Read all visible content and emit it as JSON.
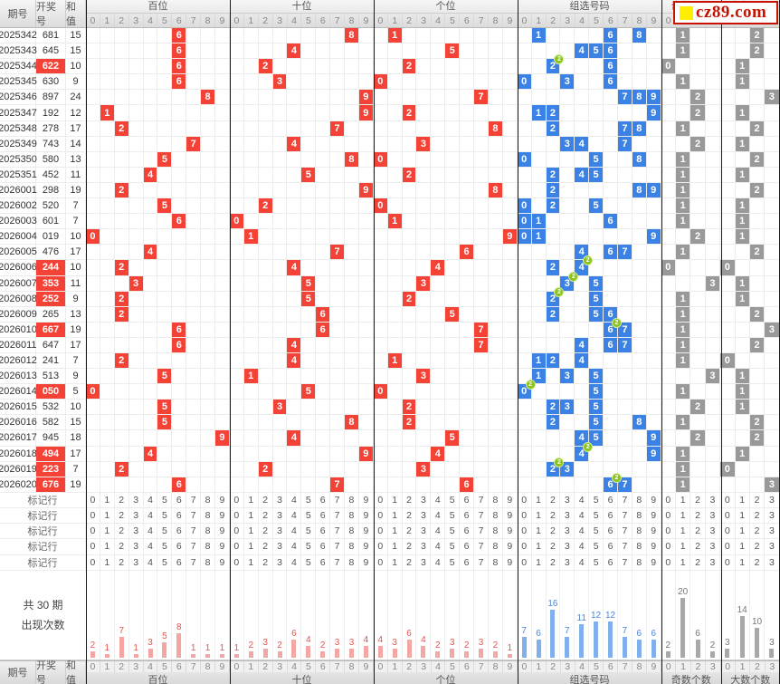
{
  "logo": {
    "text": "cz89.com",
    "square_color": "#ffee00",
    "border_color": "#c61200"
  },
  "columns": {
    "period": "期号",
    "draw": "开奖号",
    "sum": "和值"
  },
  "digit_labels": [
    "0",
    "1",
    "2",
    "3",
    "4",
    "5",
    "6",
    "7",
    "8",
    "9"
  ],
  "count_labels": [
    "0",
    "1",
    "2",
    "3"
  ],
  "sections": [
    {
      "key": "bai",
      "label": "百位",
      "cols": 10,
      "color": "red"
    },
    {
      "key": "shi",
      "label": "十位",
      "cols": 10,
      "color": "red"
    },
    {
      "key": "ge",
      "label": "个位",
      "cols": 10,
      "color": "red"
    },
    {
      "key": "zu",
      "label": "组选号码",
      "cols": 10,
      "color": "blue"
    },
    {
      "key": "ji",
      "label": "奇数个数",
      "cols": 4,
      "color": "gray"
    },
    {
      "key": "da",
      "label": "大数个数",
      "cols": 4,
      "color": "gray"
    }
  ],
  "rows": [
    {
      "period": "2025342",
      "draw": "681",
      "sum": "15",
      "hl": false,
      "bai": 6,
      "shi": 8,
      "ge": 1,
      "zu": [
        {
          "d": 1
        },
        {
          "d": 6
        },
        {
          "d": 8
        }
      ],
      "ji": 1,
      "da": 2
    },
    {
      "period": "2025343",
      "draw": "645",
      "sum": "15",
      "hl": false,
      "bai": 6,
      "shi": 4,
      "ge": 5,
      "zu": [
        {
          "d": 4
        },
        {
          "d": 5
        },
        {
          "d": 6
        }
      ],
      "ji": 1,
      "da": 2
    },
    {
      "period": "2025344",
      "draw": "622",
      "sum": "10",
      "hl": true,
      "bai": 6,
      "shi": 2,
      "ge": 2,
      "zu": [
        {
          "d": 2,
          "x2": true
        },
        {
          "d": 6
        }
      ],
      "ji": 0,
      "da": 1
    },
    {
      "period": "2025345",
      "draw": "630",
      "sum": "9",
      "hl": false,
      "bai": 6,
      "shi": 3,
      "ge": 0,
      "zu": [
        {
          "d": 0
        },
        {
          "d": 3
        },
        {
          "d": 6
        }
      ],
      "ji": 1,
      "da": 1
    },
    {
      "period": "2025346",
      "draw": "897",
      "sum": "24",
      "hl": false,
      "bai": 8,
      "shi": 9,
      "ge": 7,
      "zu": [
        {
          "d": 7
        },
        {
          "d": 8
        },
        {
          "d": 9
        }
      ],
      "ji": 2,
      "da": 3
    },
    {
      "period": "2025347",
      "draw": "192",
      "sum": "12",
      "hl": false,
      "bai": 1,
      "shi": 9,
      "ge": 2,
      "zu": [
        {
          "d": 1
        },
        {
          "d": 2
        },
        {
          "d": 9
        }
      ],
      "ji": 2,
      "da": 1
    },
    {
      "period": "2025348",
      "draw": "278",
      "sum": "17",
      "hl": false,
      "bai": 2,
      "shi": 7,
      "ge": 8,
      "zu": [
        {
          "d": 2
        },
        {
          "d": 7
        },
        {
          "d": 8
        }
      ],
      "ji": 1,
      "da": 2
    },
    {
      "period": "2025349",
      "draw": "743",
      "sum": "14",
      "hl": false,
      "bai": 7,
      "shi": 4,
      "ge": 3,
      "zu": [
        {
          "d": 3
        },
        {
          "d": 4
        },
        {
          "d": 7
        }
      ],
      "ji": 2,
      "da": 1
    },
    {
      "period": "2025350",
      "draw": "580",
      "sum": "13",
      "hl": false,
      "bai": 5,
      "shi": 8,
      "ge": 0,
      "zu": [
        {
          "d": 0
        },
        {
          "d": 5
        },
        {
          "d": 8
        }
      ],
      "ji": 1,
      "da": 2
    },
    {
      "period": "2025351",
      "draw": "452",
      "sum": "11",
      "hl": false,
      "bai": 4,
      "shi": 5,
      "ge": 2,
      "zu": [
        {
          "d": 2
        },
        {
          "d": 4
        },
        {
          "d": 5
        }
      ],
      "ji": 1,
      "da": 1
    },
    {
      "period": "2026001",
      "draw": "298",
      "sum": "19",
      "hl": false,
      "bai": 2,
      "shi": 9,
      "ge": 8,
      "zu": [
        {
          "d": 2
        },
        {
          "d": 8
        },
        {
          "d": 9
        }
      ],
      "ji": 1,
      "da": 2
    },
    {
      "period": "2026002",
      "draw": "520",
      "sum": "7",
      "hl": false,
      "bai": 5,
      "shi": 2,
      "ge": 0,
      "zu": [
        {
          "d": 0
        },
        {
          "d": 2
        },
        {
          "d": 5
        }
      ],
      "ji": 1,
      "da": 1
    },
    {
      "period": "2026003",
      "draw": "601",
      "sum": "7",
      "hl": false,
      "bai": 6,
      "shi": 0,
      "ge": 1,
      "zu": [
        {
          "d": 0
        },
        {
          "d": 1
        },
        {
          "d": 6
        }
      ],
      "ji": 1,
      "da": 1
    },
    {
      "period": "2026004",
      "draw": "019",
      "sum": "10",
      "hl": false,
      "bai": 0,
      "shi": 1,
      "ge": 9,
      "zu": [
        {
          "d": 0
        },
        {
          "d": 1
        },
        {
          "d": 9
        }
      ],
      "ji": 2,
      "da": 1
    },
    {
      "period": "2026005",
      "draw": "476",
      "sum": "17",
      "hl": false,
      "bai": 4,
      "shi": 7,
      "ge": 6,
      "zu": [
        {
          "d": 4
        },
        {
          "d": 6
        },
        {
          "d": 7
        }
      ],
      "ji": 1,
      "da": 2
    },
    {
      "period": "2026006",
      "draw": "244",
      "sum": "10",
      "hl": true,
      "bai": 2,
      "shi": 4,
      "ge": 4,
      "zu": [
        {
          "d": 2
        },
        {
          "d": 4,
          "x2": true
        }
      ],
      "ji": 0,
      "da": 0
    },
    {
      "period": "2026007",
      "draw": "353",
      "sum": "11",
      "hl": true,
      "bai": 3,
      "shi": 5,
      "ge": 3,
      "zu": [
        {
          "d": 3,
          "x2": true
        },
        {
          "d": 5
        }
      ],
      "ji": 3,
      "da": 1
    },
    {
      "period": "2026008",
      "draw": "252",
      "sum": "9",
      "hl": true,
      "bai": 2,
      "shi": 5,
      "ge": 2,
      "zu": [
        {
          "d": 2,
          "x2": true
        },
        {
          "d": 5
        }
      ],
      "ji": 1,
      "da": 1
    },
    {
      "period": "2026009",
      "draw": "265",
      "sum": "13",
      "hl": false,
      "bai": 2,
      "shi": 6,
      "ge": 5,
      "zu": [
        {
          "d": 2
        },
        {
          "d": 5
        },
        {
          "d": 6
        }
      ],
      "ji": 1,
      "da": 2
    },
    {
      "period": "2026010",
      "draw": "667",
      "sum": "19",
      "hl": true,
      "bai": 6,
      "shi": 6,
      "ge": 7,
      "zu": [
        {
          "d": 6,
          "x2": true
        },
        {
          "d": 7
        }
      ],
      "ji": 1,
      "da": 3
    },
    {
      "period": "2026011",
      "draw": "647",
      "sum": "17",
      "hl": false,
      "bai": 6,
      "shi": 4,
      "ge": 7,
      "zu": [
        {
          "d": 4
        },
        {
          "d": 6
        },
        {
          "d": 7
        }
      ],
      "ji": 1,
      "da": 2
    },
    {
      "period": "2026012",
      "draw": "241",
      "sum": "7",
      "hl": false,
      "bai": 2,
      "shi": 4,
      "ge": 1,
      "zu": [
        {
          "d": 1
        },
        {
          "d": 2
        },
        {
          "d": 4
        }
      ],
      "ji": 1,
      "da": 0
    },
    {
      "period": "2026013",
      "draw": "513",
      "sum": "9",
      "hl": false,
      "bai": 5,
      "shi": 1,
      "ge": 3,
      "zu": [
        {
          "d": 1
        },
        {
          "d": 3
        },
        {
          "d": 5
        }
      ],
      "ji": 3,
      "da": 1
    },
    {
      "period": "2026014",
      "draw": "050",
      "sum": "5",
      "hl": true,
      "bai": 0,
      "shi": 5,
      "ge": 0,
      "zu": [
        {
          "d": 0,
          "x2": true
        },
        {
          "d": 5
        }
      ],
      "ji": 1,
      "da": 1
    },
    {
      "period": "2026015",
      "draw": "532",
      "sum": "10",
      "hl": false,
      "bai": 5,
      "shi": 3,
      "ge": 2,
      "zu": [
        {
          "d": 2
        },
        {
          "d": 3
        },
        {
          "d": 5
        }
      ],
      "ji": 2,
      "da": 1
    },
    {
      "period": "2026016",
      "draw": "582",
      "sum": "15",
      "hl": false,
      "bai": 5,
      "shi": 8,
      "ge": 2,
      "zu": [
        {
          "d": 2
        },
        {
          "d": 5
        },
        {
          "d": 8
        }
      ],
      "ji": 1,
      "da": 2
    },
    {
      "period": "2026017",
      "draw": "945",
      "sum": "18",
      "hl": false,
      "bai": 9,
      "shi": 4,
      "ge": 5,
      "zu": [
        {
          "d": 4
        },
        {
          "d": 5
        },
        {
          "d": 9
        }
      ],
      "ji": 2,
      "da": 2
    },
    {
      "period": "2026018",
      "draw": "494",
      "sum": "17",
      "hl": true,
      "bai": 4,
      "shi": 9,
      "ge": 4,
      "zu": [
        {
          "d": 4,
          "x2": true
        },
        {
          "d": 9
        }
      ],
      "ji": 1,
      "da": 1
    },
    {
      "period": "2026019",
      "draw": "223",
      "sum": "7",
      "hl": true,
      "bai": 2,
      "shi": 2,
      "ge": 3,
      "zu": [
        {
          "d": 2,
          "x2": true
        },
        {
          "d": 3
        }
      ],
      "ji": 1,
      "da": 0
    },
    {
      "period": "2026020",
      "draw": "676",
      "sum": "19",
      "hl": true,
      "bai": 6,
      "shi": 7,
      "ge": 6,
      "zu": [
        {
          "d": 6,
          "x2": true
        },
        {
          "d": 7
        }
      ],
      "ji": 1,
      "da": 3
    }
  ],
  "marks": {
    "label": "标记行",
    "count": 5
  },
  "stats": {
    "label1": "共 30 期",
    "label2": "出现次数",
    "bai": [
      2,
      1,
      7,
      1,
      3,
      5,
      8,
      1,
      1,
      1
    ],
    "shi": [
      1,
      2,
      3,
      2,
      6,
      4,
      2,
      3,
      3,
      4
    ],
    "ge": [
      4,
      3,
      6,
      4,
      2,
      3,
      2,
      3,
      2,
      1
    ],
    "zu": [
      7,
      6,
      16,
      7,
      11,
      12,
      12,
      7,
      6,
      6
    ],
    "ji": [
      2,
      20,
      6,
      2
    ],
    "da": [
      3,
      14,
      10,
      3
    ]
  },
  "chart_data": {
    "type": "bar",
    "title": "共30期出现次数",
    "series": [
      {
        "name": "百位",
        "categories": [
          "0",
          "1",
          "2",
          "3",
          "4",
          "5",
          "6",
          "7",
          "8",
          "9"
        ],
        "values": [
          2,
          1,
          7,
          1,
          3,
          5,
          8,
          1,
          1,
          1
        ]
      },
      {
        "name": "十位",
        "categories": [
          "0",
          "1",
          "2",
          "3",
          "4",
          "5",
          "6",
          "7",
          "8",
          "9"
        ],
        "values": [
          1,
          2,
          3,
          2,
          6,
          4,
          2,
          3,
          3,
          4
        ]
      },
      {
        "name": "个位",
        "categories": [
          "0",
          "1",
          "2",
          "3",
          "4",
          "5",
          "6",
          "7",
          "8",
          "9"
        ],
        "values": [
          4,
          3,
          6,
          4,
          2,
          3,
          2,
          3,
          2,
          1
        ]
      },
      {
        "name": "组选号码",
        "categories": [
          "0",
          "1",
          "2",
          "3",
          "4",
          "5",
          "6",
          "7",
          "8",
          "9"
        ],
        "values": [
          7,
          6,
          16,
          7,
          11,
          12,
          12,
          7,
          6,
          6
        ]
      },
      {
        "name": "奇数个数",
        "categories": [
          "0",
          "1",
          "2",
          "3"
        ],
        "values": [
          2,
          20,
          6,
          2
        ]
      },
      {
        "name": "大数个数",
        "categories": [
          "0",
          "1",
          "2",
          "3"
        ],
        "values": [
          3,
          14,
          10,
          3
        ]
      }
    ]
  },
  "colors": {
    "red_cell": "#f44236",
    "blue_cell": "#3b82e6",
    "gray_cell": "#999999",
    "badge_green": "#8cc41e",
    "bar_red": "#f3a6a4",
    "bar_blue": "#7fb0ec",
    "bar_gray": "#a8a8a8"
  }
}
